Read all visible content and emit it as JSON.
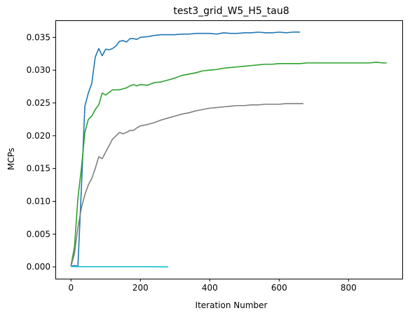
{
  "chart_data": {
    "type": "line",
    "title": "test3_grid_W5_H5_tau8",
    "xlabel": "Iteration Number",
    "ylabel": "MCPs",
    "xlim": [
      -45,
      955
    ],
    "ylim": [
      -0.0018,
      0.0376
    ],
    "x_ticks": [
      0,
      200,
      400,
      600,
      800
    ],
    "x_tick_labels": [
      "0",
      "200",
      "400",
      "600",
      "800"
    ],
    "y_ticks": [
      0.0,
      0.005,
      0.01,
      0.015,
      0.02,
      0.025,
      0.03,
      0.035
    ],
    "y_tick_labels": [
      "0.000",
      "0.005",
      "0.010",
      "0.015",
      "0.020",
      "0.025",
      "0.030",
      "0.035"
    ],
    "grid": false,
    "series": [
      {
        "color": "#1f77b4",
        "x": [
          0,
          10,
          20,
          30,
          40,
          50,
          60,
          70,
          80,
          90,
          100,
          110,
          120,
          130,
          140,
          150,
          160,
          170,
          180,
          190,
          200,
          220,
          240,
          260,
          280,
          300,
          320,
          340,
          360,
          380,
          400,
          420,
          440,
          460,
          480,
          500,
          520,
          540,
          560,
          580,
          600,
          620,
          640,
          660
        ],
        "y": [
          0.0001,
          0.0002,
          0.0001,
          0.012,
          0.0245,
          0.0265,
          0.028,
          0.032,
          0.0333,
          0.0322,
          0.0332,
          0.0331,
          0.0333,
          0.0337,
          0.0344,
          0.0345,
          0.0343,
          0.0348,
          0.0348,
          0.0347,
          0.035,
          0.0351,
          0.0353,
          0.0354,
          0.0354,
          0.0354,
          0.0355,
          0.0355,
          0.0356,
          0.0356,
          0.0356,
          0.0355,
          0.0357,
          0.0356,
          0.0356,
          0.0357,
          0.0357,
          0.0358,
          0.0357,
          0.0357,
          0.0358,
          0.0357,
          0.0358,
          0.0358
        ]
      },
      {
        "color": "#2ca02c",
        "x": [
          0,
          10,
          20,
          30,
          40,
          50,
          60,
          70,
          80,
          90,
          100,
          110,
          120,
          140,
          160,
          170,
          180,
          190,
          200,
          220,
          240,
          260,
          280,
          300,
          320,
          340,
          360,
          380,
          400,
          420,
          440,
          460,
          480,
          500,
          520,
          540,
          560,
          580,
          600,
          620,
          640,
          660,
          680,
          700,
          720,
          740,
          760,
          780,
          800,
          820,
          840,
          860,
          880,
          900,
          910
        ],
        "y": [
          0.0002,
          0.003,
          0.0105,
          0.015,
          0.0205,
          0.0225,
          0.023,
          0.024,
          0.0247,
          0.0265,
          0.0262,
          0.0266,
          0.027,
          0.027,
          0.0273,
          0.0276,
          0.0278,
          0.0276,
          0.0278,
          0.0277,
          0.0281,
          0.0282,
          0.0285,
          0.0288,
          0.0292,
          0.0294,
          0.0296,
          0.0299,
          0.03,
          0.0301,
          0.0303,
          0.0304,
          0.0305,
          0.0306,
          0.0307,
          0.0308,
          0.0309,
          0.0309,
          0.031,
          0.031,
          0.031,
          0.031,
          0.0311,
          0.0311,
          0.0311,
          0.0311,
          0.0311,
          0.0311,
          0.0311,
          0.0311,
          0.0311,
          0.0311,
          0.0312,
          0.0311,
          0.0311
        ]
      },
      {
        "color": "#7f7f7f",
        "x": [
          0,
          10,
          20,
          30,
          40,
          50,
          60,
          70,
          80,
          90,
          100,
          110,
          120,
          130,
          140,
          150,
          160,
          170,
          180,
          190,
          200,
          220,
          240,
          260,
          280,
          300,
          320,
          340,
          360,
          380,
          400,
          420,
          440,
          460,
          480,
          500,
          520,
          540,
          560,
          580,
          600,
          620,
          640,
          660,
          670
        ],
        "y": [
          0.0001,
          0.002,
          0.006,
          0.009,
          0.011,
          0.0125,
          0.0135,
          0.015,
          0.0168,
          0.0165,
          0.0175,
          0.0185,
          0.0195,
          0.02,
          0.0205,
          0.0203,
          0.0205,
          0.0208,
          0.0208,
          0.0212,
          0.0215,
          0.0217,
          0.022,
          0.0224,
          0.0227,
          0.023,
          0.0233,
          0.0235,
          0.0238,
          0.024,
          0.0242,
          0.0243,
          0.0244,
          0.0245,
          0.0246,
          0.0246,
          0.0247,
          0.0247,
          0.0248,
          0.0248,
          0.0248,
          0.0249,
          0.0249,
          0.0249,
          0.0249
        ]
      },
      {
        "color": "#17becf",
        "x": [
          0,
          20,
          40,
          60,
          80,
          100,
          120,
          140,
          160,
          180,
          200,
          220,
          240,
          260,
          280
        ],
        "y": [
          5e-05,
          3e-05,
          3e-05,
          3e-05,
          3e-05,
          3e-05,
          3e-05,
          3e-05,
          3e-05,
          3e-05,
          3e-05,
          3e-05,
          2e-05,
          1e-05,
          1e-05
        ]
      }
    ]
  }
}
